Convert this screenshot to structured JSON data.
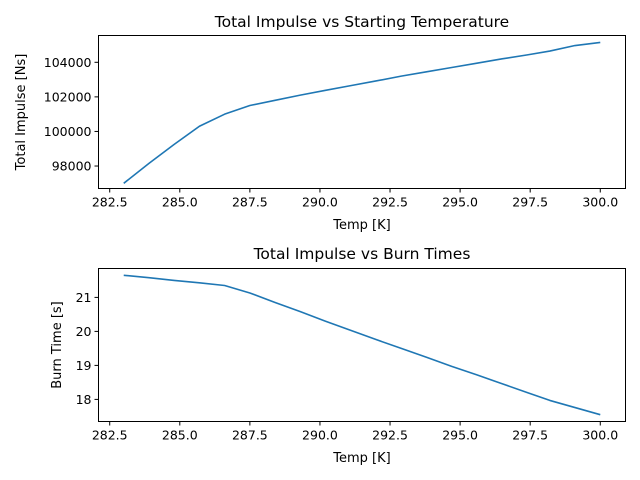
{
  "colors": {
    "series": "#1f77b4",
    "axes": "#000000",
    "background": "#ffffff"
  },
  "chart_data": [
    {
      "type": "line",
      "title": "Total Impulse vs Starting Temperature",
      "xlabel": "Temp [K]",
      "ylabel": "Total Impulse [Ns]",
      "xlim": [
        282.1,
        300.9
      ],
      "ylim": [
        96700,
        105550
      ],
      "grid": false,
      "xticks": [
        282.5,
        285.0,
        287.5,
        290.0,
        292.5,
        295.0,
        297.5,
        300.0
      ],
      "xtick_labels": [
        "282.5",
        "285.0",
        "287.5",
        "290.0",
        "292.5",
        "295.0",
        "297.5",
        "300.0"
      ],
      "yticks": [
        98000,
        100000,
        102000,
        104000
      ],
      "ytick_labels": [
        "98000",
        "100000",
        "102000",
        "104000"
      ],
      "series": [
        {
          "x": [
            283.0,
            283.9,
            284.8,
            285.7,
            286.6,
            287.5,
            288.4,
            289.3,
            290.2,
            291.1,
            292.0,
            292.9,
            293.8,
            294.7,
            295.6,
            296.5,
            297.4,
            298.2,
            299.1,
            300.0
          ],
          "y": [
            97000,
            98150,
            99250,
            100300,
            101000,
            101500,
            101800,
            102100,
            102380,
            102650,
            102920,
            103200,
            103450,
            103700,
            103950,
            104200,
            104430,
            104650,
            104970,
            105150
          ]
        }
      ]
    },
    {
      "type": "line",
      "title": "Total Impulse vs Burn Times",
      "xlabel": "Temp [K]",
      "ylabel": "Burn Time [s]",
      "xlim": [
        282.1,
        300.9
      ],
      "ylim": [
        17.35,
        21.85
      ],
      "grid": false,
      "xticks": [
        282.5,
        285.0,
        287.5,
        290.0,
        292.5,
        295.0,
        297.5,
        300.0
      ],
      "xtick_labels": [
        "282.5",
        "285.0",
        "287.5",
        "290.0",
        "292.5",
        "295.0",
        "297.5",
        "300.0"
      ],
      "yticks": [
        18,
        19,
        20,
        21
      ],
      "ytick_labels": [
        "18",
        "19",
        "20",
        "21"
      ],
      "series": [
        {
          "x": [
            283.0,
            283.9,
            284.8,
            285.7,
            286.6,
            287.5,
            288.4,
            289.3,
            290.2,
            291.1,
            292.0,
            292.9,
            293.8,
            294.7,
            295.6,
            296.5,
            297.4,
            298.2,
            299.1,
            300.0
          ],
          "y": [
            21.65,
            21.58,
            21.5,
            21.43,
            21.35,
            21.13,
            20.85,
            20.58,
            20.3,
            20.03,
            19.76,
            19.5,
            19.24,
            18.97,
            18.72,
            18.46,
            18.2,
            17.97,
            17.76,
            17.55
          ]
        }
      ]
    }
  ]
}
